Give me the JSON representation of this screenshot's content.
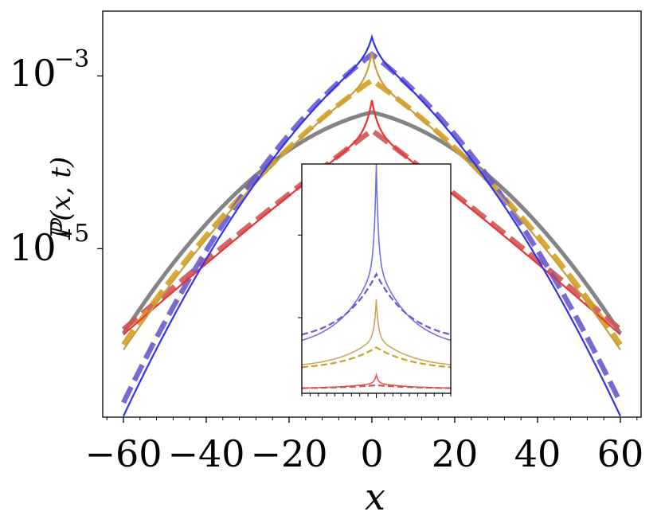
{
  "chart_data": [
    {
      "type": "line",
      "panel": "main",
      "title": "",
      "xlabel": "x",
      "ylabel": "ℙ(x, t)",
      "xlim": [
        -65,
        65
      ],
      "ylim_log10": [
        -6.95,
        -2.25
      ],
      "yscale": "log",
      "xticks": [
        -60,
        -40,
        -20,
        0,
        20,
        40,
        60
      ],
      "xtick_labels": [
        "−60",
        "−40",
        "−20",
        "0",
        "20",
        "40",
        "60"
      ],
      "yticks_log10": [
        -3,
        -5
      ],
      "ytick_labels": [
        {
          "base": "10",
          "exp": "−3"
        },
        {
          "base": "10",
          "exp": "−5"
        }
      ],
      "series": [
        {
          "name": "blue-solid",
          "color": "#3333ee",
          "style": "solid",
          "peak_log10": -2.55,
          "center_log10": -2.75,
          "slope": 0.038,
          "quad": 0.00053,
          "ws": 1.6
        },
        {
          "name": "blue-dashed",
          "color": "#6a5acd",
          "style": "dashed",
          "peak_log10": -2.75,
          "slope": 0.036,
          "quad": 0.00052,
          "ws": 0
        },
        {
          "name": "gold-solid",
          "color": "#c8a040",
          "style": "solid",
          "peak_log10": -2.73,
          "center_log10": -3.05,
          "slope": 0.034,
          "quad": 0.0003,
          "ws": 1.5
        },
        {
          "name": "gold-dashed",
          "color": "#d4a020",
          "style": "dashed",
          "peak_log10": -3.05,
          "slope": 0.033,
          "quad": 0.0003,
          "ws": 0
        },
        {
          "name": "gray-reference",
          "color": "#777777",
          "style": "solid",
          "peak_log10": -3.42,
          "slope": 0.0115,
          "quad": 0.00052,
          "ws": 0
        },
        {
          "name": "red-solid",
          "color": "#ee3333",
          "style": "solid",
          "peak_log10": -3.28,
          "center_log10": -3.63,
          "slope": 0.037,
          "quad": 4e-05,
          "ws": 1.5
        },
        {
          "name": "red-dashed",
          "color": "#cc5555",
          "style": "dashed",
          "peak_log10": -3.63,
          "slope": 0.036,
          "quad": 4e-05,
          "ws": 0
        }
      ]
    },
    {
      "type": "line",
      "panel": "inset",
      "xlim": [
        -18,
        18
      ],
      "xticks_major": [
        -20,
        0,
        20
      ],
      "yticks_count": 2,
      "series": [
        {
          "name": "inset-blue-solid",
          "color": "#7070ee",
          "style": "solid",
          "peak": 1.0,
          "base": 0.19,
          "center": 0.58,
          "width": 8.0
        },
        {
          "name": "inset-blue-dashed",
          "color": "#6a5acd",
          "style": "dashed",
          "base": 0.22,
          "center": 0.52,
          "width": 8.5
        },
        {
          "name": "inset-gold-solid",
          "color": "#c8a860",
          "style": "solid",
          "peak": 0.41,
          "base": 0.11,
          "center": 0.25,
          "width": 8.0
        },
        {
          "name": "inset-gold-dashed",
          "color": "#d4a020",
          "style": "dashed",
          "base": 0.1,
          "center": 0.2,
          "width": 9.0
        },
        {
          "name": "inset-red-solid",
          "color": "#ee5555",
          "style": "solid",
          "peak": 0.08,
          "base": 0.02,
          "center": 0.045,
          "width": 8.0
        },
        {
          "name": "inset-red-dashed",
          "color": "#cc5555",
          "style": "dashed",
          "base": 0.02,
          "center": 0.035,
          "width": 10.0
        }
      ]
    }
  ]
}
